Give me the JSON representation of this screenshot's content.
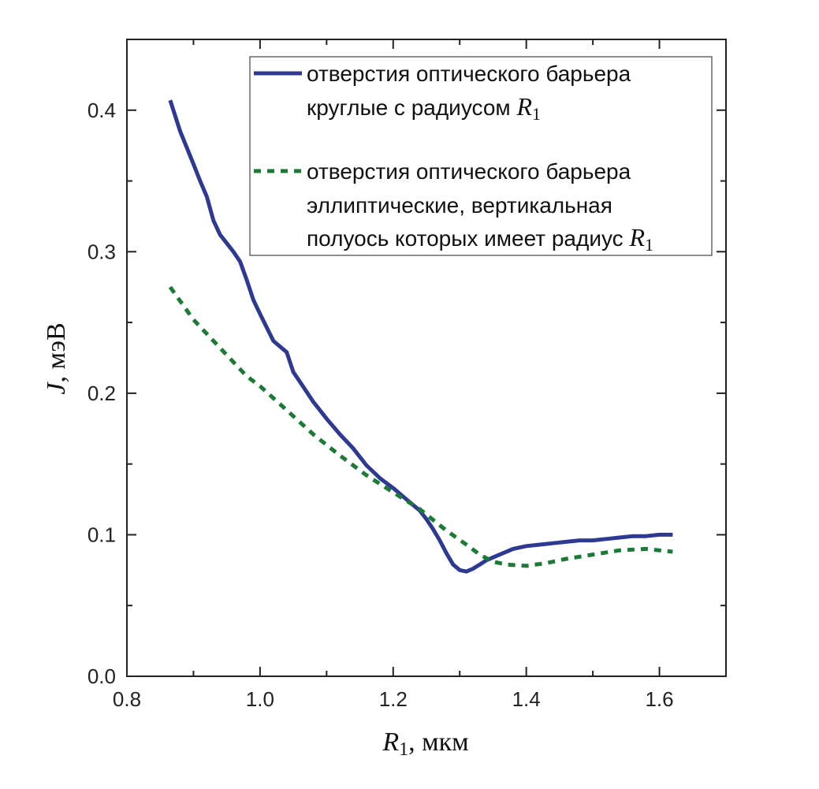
{
  "chart_data": {
    "type": "line",
    "xlabel_var": "R",
    "xlabel_sub": "1",
    "xlabel_unit": ", мкм",
    "ylabel_var": "J",
    "ylabel_unit": ", мэВ",
    "xlim": [
      0.8,
      1.7
    ],
    "ylim": [
      0.0,
      0.45
    ],
    "xticks": [
      0.8,
      1.0,
      1.2,
      1.4,
      1.6
    ],
    "xtick_labels": [
      "0.8",
      "1.0",
      "1.2",
      "1.4",
      "1.6"
    ],
    "yticks": [
      0.0,
      0.1,
      0.2,
      0.3,
      0.4
    ],
    "ytick_labels": [
      "0.0",
      "0.1",
      "0.2",
      "0.3",
      "0.4"
    ],
    "legend_position": "top-right",
    "series": [
      {
        "name": "circular",
        "color": "#2e3a92",
        "style": "solid",
        "legend_line1": "отверстия оптического барьера",
        "legend_line2": "круглые с радиусом ",
        "legend_var": "R",
        "legend_sub": "1",
        "x": [
          0.865,
          0.88,
          0.9,
          0.91,
          0.92,
          0.93,
          0.94,
          0.96,
          0.97,
          0.98,
          0.99,
          1.0,
          1.02,
          1.03,
          1.04,
          1.05,
          1.06,
          1.08,
          1.1,
          1.12,
          1.14,
          1.16,
          1.18,
          1.2,
          1.22,
          1.24,
          1.25,
          1.26,
          1.27,
          1.28,
          1.29,
          1.3,
          1.31,
          1.32,
          1.33,
          1.34,
          1.36,
          1.38,
          1.4,
          1.42,
          1.44,
          1.46,
          1.48,
          1.5,
          1.52,
          1.54,
          1.56,
          1.58,
          1.6,
          1.62
        ],
        "y": [
          0.407,
          0.385,
          0.362,
          0.35,
          0.339,
          0.322,
          0.312,
          0.3,
          0.293,
          0.28,
          0.266,
          0.256,
          0.237,
          0.233,
          0.229,
          0.215,
          0.208,
          0.194,
          0.182,
          0.171,
          0.161,
          0.149,
          0.14,
          0.133,
          0.125,
          0.117,
          0.111,
          0.104,
          0.096,
          0.087,
          0.079,
          0.075,
          0.074,
          0.076,
          0.079,
          0.082,
          0.086,
          0.09,
          0.092,
          0.093,
          0.094,
          0.095,
          0.096,
          0.096,
          0.097,
          0.098,
          0.099,
          0.099,
          0.1,
          0.1
        ]
      },
      {
        "name": "elliptical",
        "color": "#1a7a36",
        "style": "dashed",
        "legend_line1": "отверстия оптического барьера",
        "legend_line2": "эллиптические, вертикальная",
        "legend_line3": "полуось которых имеет радиус ",
        "legend_var": "R",
        "legend_sub": "1",
        "x": [
          0.865,
          0.9,
          0.93,
          0.96,
          0.98,
          1.0,
          1.04,
          1.08,
          1.12,
          1.16,
          1.2,
          1.24,
          1.28,
          1.31,
          1.33,
          1.35,
          1.37,
          1.4,
          1.43,
          1.46,
          1.5,
          1.54,
          1.58,
          1.62
        ],
        "y": [
          0.275,
          0.252,
          0.237,
          0.222,
          0.212,
          0.205,
          0.188,
          0.171,
          0.156,
          0.142,
          0.13,
          0.118,
          0.103,
          0.093,
          0.086,
          0.081,
          0.079,
          0.078,
          0.08,
          0.083,
          0.086,
          0.089,
          0.09,
          0.088
        ]
      }
    ]
  }
}
